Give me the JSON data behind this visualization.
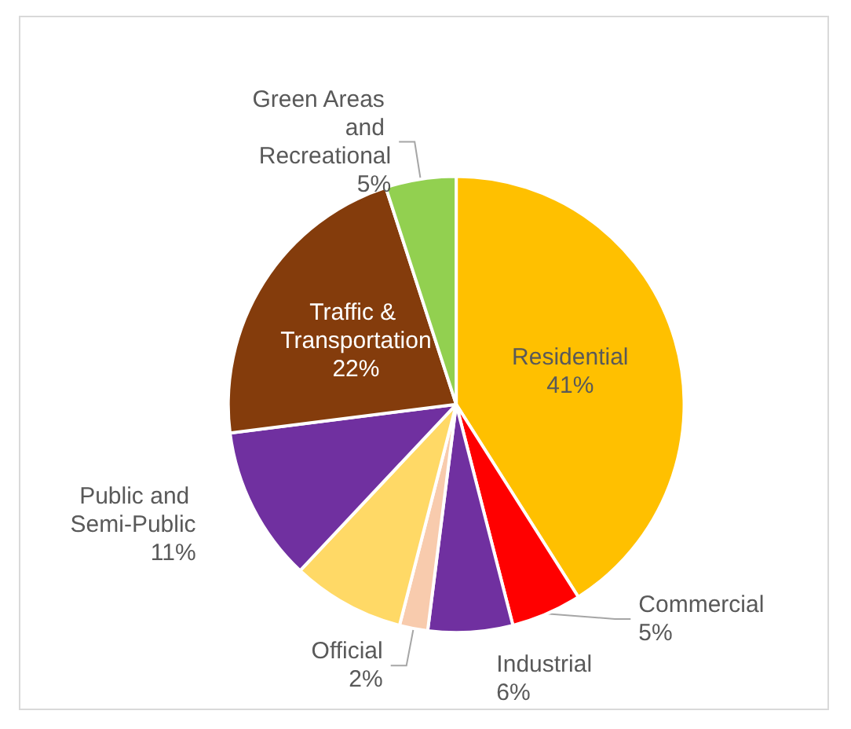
{
  "chart_data": {
    "type": "pie",
    "categories": [
      "Residential",
      "Commercial",
      "Industrial",
      "Official",
      null,
      "Public and Semi-Public",
      "Traffic & Transportation",
      "Green Areas and Recreational"
    ],
    "values": [
      41,
      5,
      6,
      2,
      8,
      11,
      22,
      5
    ],
    "colors": [
      "#ffc000",
      "#ff0000",
      "#7030a0",
      "#f8cbad",
      "#ffd966",
      "#7030a0",
      "#843c0c",
      "#92d050"
    ],
    "value_labels": [
      "41%",
      "5%",
      "6%",
      "2%",
      null,
      "11%",
      "22%",
      "5%"
    ],
    "legend": false
  }
}
